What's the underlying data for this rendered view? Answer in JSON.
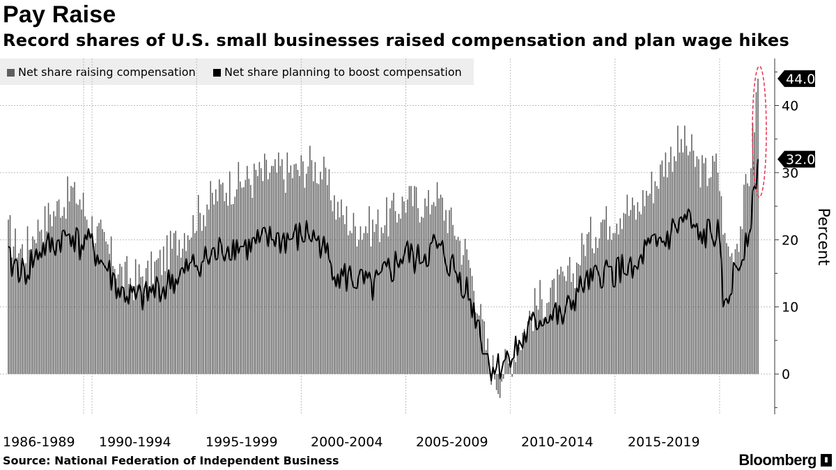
{
  "title": "Pay Raise",
  "subtitle": "Record shares of U.S. small businesses raised compensation and plan wage hikes",
  "footer": {
    "source": "Source: National Federation of Independent Business",
    "brand": "Bloomberg"
  },
  "colors": {
    "bar": "#5f5f5f",
    "line": "#000000",
    "grid": "#bbbbbb",
    "highlight": "#e8304e",
    "legend_bg": "#eeeeee"
  },
  "chart_data": {
    "type": "bar",
    "xlabel": "",
    "ylabel": "Percent",
    "ylim": [
      -6,
      47
    ],
    "yticks": [
      0,
      10,
      20,
      30,
      40
    ],
    "grid": true,
    "legend_placement": "top-left",
    "x_tick_labels": [
      "1986-1989",
      "1990-1994",
      "1995-1999",
      "2000-2004",
      "2005-2009",
      "2010-2014",
      "2015-2019"
    ],
    "series": [
      {
        "name": "Net share raising compensation",
        "kind": "bar",
        "start": "1986-01",
        "frequency": "monthly",
        "anchors": [
          [
            "1986-01",
            21
          ],
          [
            "1986-10",
            18
          ],
          [
            "1987-06",
            22
          ],
          [
            "1988-06",
            25
          ],
          [
            "1989-01",
            27
          ],
          [
            "1989-06",
            26
          ],
          [
            "1989-10",
            24
          ],
          [
            "1990-06",
            20
          ],
          [
            "1991-06",
            15
          ],
          [
            "1992-01",
            14
          ],
          [
            "1992-10",
            15
          ],
          [
            "1993-06",
            17
          ],
          [
            "1994-06",
            21
          ],
          [
            "1995-06",
            25
          ],
          [
            "1996-06",
            28
          ],
          [
            "1997-06",
            29
          ],
          [
            "1998-06",
            30
          ],
          [
            "1999-06",
            30
          ],
          [
            "2000-06",
            31
          ],
          [
            "2001-01",
            30
          ],
          [
            "2001-09",
            25
          ],
          [
            "2002-06",
            22
          ],
          [
            "2003-06",
            22
          ],
          [
            "2004-06",
            24
          ],
          [
            "2005-01",
            26
          ],
          [
            "2005-06",
            26
          ],
          [
            "2006-01",
            25
          ],
          [
            "2006-06",
            27
          ],
          [
            "2007-01",
            24
          ],
          [
            "2007-06",
            21
          ],
          [
            "2008-01",
            17
          ],
          [
            "2008-06",
            11
          ],
          [
            "2009-01",
            2
          ],
          [
            "2009-06",
            -1
          ],
          [
            "2010-01",
            2
          ],
          [
            "2010-06",
            5
          ],
          [
            "2011-01",
            9
          ],
          [
            "2011-06",
            11
          ],
          [
            "2012-01",
            12
          ],
          [
            "2012-06",
            13
          ],
          [
            "2013-01",
            15
          ],
          [
            "2013-06",
            19
          ],
          [
            "2014-01",
            21
          ],
          [
            "2014-06",
            23
          ],
          [
            "2015-01",
            23
          ],
          [
            "2015-06",
            25
          ],
          [
            "2016-01",
            24
          ],
          [
            "2016-06",
            27
          ],
          [
            "2017-01",
            29
          ],
          [
            "2017-06",
            32
          ],
          [
            "2018-01",
            34
          ],
          [
            "2018-06",
            34
          ],
          [
            "2019-01",
            31
          ],
          [
            "2019-06",
            30
          ],
          [
            "2019-12",
            31
          ],
          [
            "2020-04",
            20
          ],
          [
            "2020-08",
            18
          ],
          [
            "2021-01",
            22
          ],
          [
            "2021-06",
            30
          ],
          [
            "2021-09",
            38
          ],
          [
            "2021-11",
            44
          ]
        ]
      },
      {
        "name": "Net share planning to boost compensation",
        "kind": "line",
        "start": "1986-01",
        "frequency": "monthly",
        "anchors": [
          [
            "1986-01",
            17
          ],
          [
            "1986-10",
            15
          ],
          [
            "1987-06",
            18
          ],
          [
            "1988-06",
            20
          ],
          [
            "1989-01",
            21
          ],
          [
            "1989-06",
            19
          ],
          [
            "1989-10",
            20
          ],
          [
            "1990-06",
            17
          ],
          [
            "1991-06",
            12
          ],
          [
            "1992-01",
            11
          ],
          [
            "1992-10",
            12
          ],
          [
            "1993-06",
            13
          ],
          [
            "1994-06",
            15
          ],
          [
            "1995-06",
            17
          ],
          [
            "1996-06",
            19
          ],
          [
            "1997-06",
            19
          ],
          [
            "1998-06",
            20
          ],
          [
            "1999-06",
            20
          ],
          [
            "2000-06",
            21
          ],
          [
            "2001-01",
            19
          ],
          [
            "2001-09",
            15
          ],
          [
            "2002-06",
            14
          ],
          [
            "2003-06",
            13
          ],
          [
            "2004-06",
            16
          ],
          [
            "2005-01",
            18
          ],
          [
            "2005-06",
            17
          ],
          [
            "2006-01",
            18
          ],
          [
            "2006-06",
            19
          ],
          [
            "2007-01",
            17
          ],
          [
            "2007-06",
            15
          ],
          [
            "2008-01",
            12
          ],
          [
            "2008-06",
            8
          ],
          [
            "2009-01",
            1
          ],
          [
            "2009-06",
            1
          ],
          [
            "2010-01",
            3
          ],
          [
            "2010-06",
            4
          ],
          [
            "2011-01",
            7
          ],
          [
            "2011-06",
            8
          ],
          [
            "2012-01",
            9
          ],
          [
            "2012-06",
            8
          ],
          [
            "2013-01",
            11
          ],
          [
            "2013-06",
            13
          ],
          [
            "2014-01",
            14
          ],
          [
            "2014-06",
            15
          ],
          [
            "2015-01",
            15
          ],
          [
            "2015-06",
            16
          ],
          [
            "2016-01",
            15
          ],
          [
            "2016-06",
            18
          ],
          [
            "2017-01",
            19
          ],
          [
            "2017-06",
            20
          ],
          [
            "2018-01",
            22
          ],
          [
            "2018-06",
            23
          ],
          [
            "2019-01",
            20
          ],
          [
            "2019-06",
            21
          ],
          [
            "2019-12",
            21
          ],
          [
            "2020-04",
            9
          ],
          [
            "2020-08",
            14
          ],
          [
            "2021-01",
            17
          ],
          [
            "2021-06",
            22
          ],
          [
            "2021-09",
            27
          ],
          [
            "2021-11",
            32
          ]
        ]
      }
    ],
    "last_value_labels": [
      {
        "series": "Net share raising compensation",
        "value": "44.0"
      },
      {
        "series": "Net share planning to boost compensation",
        "value": "32.0"
      }
    ],
    "annotations": [
      {
        "type": "dashed-ellipse",
        "target": "latest readings (2021)"
      }
    ]
  }
}
